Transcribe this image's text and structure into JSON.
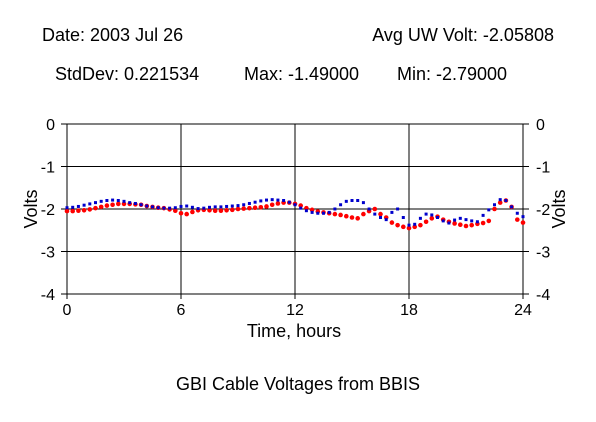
{
  "header": {
    "date": "Date: 2003 Jul 26",
    "avg": "Avg UW Volt: -2.05808",
    "stddev": "StdDev: 0.221534",
    "max": "Max: -1.49000",
    "min": "Min: -2.79000"
  },
  "caption": "GBI Cable Voltages from BBIS",
  "colors": {
    "series_red": "#ff0000",
    "series_blue": "#0000cc",
    "axis": "#000000"
  },
  "chart_data": {
    "type": "scatter",
    "title": "",
    "xlabel": "Time, hours",
    "ylabel": "Volts",
    "xlim": [
      0,
      24
    ],
    "ylim": [
      -4,
      0
    ],
    "xticks": [
      0,
      6,
      12,
      18,
      24
    ],
    "yticks": [
      0,
      -1,
      -2,
      -3,
      -4
    ],
    "grid": true,
    "series": [
      {
        "color": "#ff0000",
        "x": [
          0,
          0.3,
          0.6,
          0.9,
          1.2,
          1.5,
          1.8,
          2.1,
          2.4,
          2.7,
          3,
          3.3,
          3.6,
          3.9,
          4.2,
          4.5,
          4.8,
          5.1,
          5.4,
          5.7,
          6,
          6.3,
          6.6,
          6.9,
          7.2,
          7.5,
          7.8,
          8.1,
          8.4,
          8.7,
          9,
          9.3,
          9.6,
          9.9,
          10.2,
          10.5,
          10.8,
          11.1,
          11.4,
          11.7,
          12,
          12.3,
          12.6,
          12.9,
          13.2,
          13.5,
          13.8,
          14.1,
          14.4,
          14.7,
          15,
          15.3,
          15.6,
          15.9,
          16.2,
          16.5,
          16.8,
          17.1,
          17.4,
          17.7,
          18,
          18.3,
          18.6,
          18.9,
          19.2,
          19.5,
          19.8,
          20.1,
          20.4,
          20.7,
          21,
          21.3,
          21.6,
          21.9,
          22.2,
          22.5,
          22.8,
          23.1,
          23.4,
          23.7,
          24
        ],
        "y": [
          -2.05,
          -2.05,
          -2.04,
          -2.03,
          -2.01,
          -1.98,
          -1.95,
          -1.92,
          -1.9,
          -1.88,
          -1.88,
          -1.88,
          -1.89,
          -1.9,
          -1.93,
          -1.95,
          -1.97,
          -1.98,
          -2.01,
          -2.04,
          -2.1,
          -2.12,
          -2.07,
          -2.03,
          -2.02,
          -2.03,
          -2.04,
          -2.04,
          -2.03,
          -2.02,
          -2.0,
          -1.99,
          -1.98,
          -1.97,
          -1.96,
          -1.94,
          -1.9,
          -1.87,
          -1.85,
          -1.85,
          -1.88,
          -1.92,
          -1.98,
          -2.02,
          -2.06,
          -2.08,
          -2.1,
          -2.12,
          -2.14,
          -2.17,
          -2.2,
          -2.22,
          -2.12,
          -2.05,
          -2.0,
          -2.12,
          -2.2,
          -2.32,
          -2.38,
          -2.42,
          -2.45,
          -2.42,
          -2.38,
          -2.3,
          -2.22,
          -2.18,
          -2.25,
          -2.3,
          -2.34,
          -2.37,
          -2.4,
          -2.38,
          -2.35,
          -2.33,
          -2.28,
          -2.0,
          -1.85,
          -1.8,
          -1.95,
          -2.25,
          -2.32
        ]
      },
      {
        "color": "#0000cc",
        "x": [
          0,
          0.3,
          0.6,
          0.9,
          1.2,
          1.5,
          1.8,
          2.1,
          2.4,
          2.7,
          3,
          3.3,
          3.6,
          3.9,
          4.2,
          4.5,
          4.8,
          5.1,
          5.4,
          5.7,
          6,
          6.3,
          6.6,
          6.9,
          7.2,
          7.5,
          7.8,
          8.1,
          8.4,
          8.7,
          9,
          9.3,
          9.6,
          9.9,
          10.2,
          10.5,
          10.8,
          11.1,
          11.4,
          11.7,
          12,
          12.3,
          12.6,
          12.9,
          13.2,
          13.5,
          13.8,
          14.1,
          14.4,
          14.7,
          15,
          15.3,
          15.6,
          15.9,
          16.2,
          16.5,
          16.8,
          17.1,
          17.4,
          17.7,
          18,
          18.3,
          18.6,
          18.9,
          19.2,
          19.5,
          19.8,
          20.1,
          20.4,
          20.7,
          21,
          21.3,
          21.6,
          21.9,
          22.2,
          22.5,
          22.8,
          23.1,
          23.4,
          23.7,
          24
        ],
        "y": [
          -1.97,
          -1.96,
          -1.94,
          -1.91,
          -1.88,
          -1.85,
          -1.82,
          -1.8,
          -1.79,
          -1.8,
          -1.82,
          -1.85,
          -1.87,
          -1.9,
          -1.93,
          -1.95,
          -1.97,
          -1.98,
          -1.98,
          -1.97,
          -1.94,
          -1.93,
          -1.96,
          -1.99,
          -1.98,
          -1.96,
          -1.95,
          -1.95,
          -1.94,
          -1.93,
          -1.92,
          -1.9,
          -1.87,
          -1.84,
          -1.81,
          -1.79,
          -1.78,
          -1.79,
          -1.8,
          -1.84,
          -1.9,
          -1.98,
          -2.04,
          -2.08,
          -2.1,
          -2.1,
          -2.08,
          -2.0,
          -1.9,
          -1.82,
          -1.8,
          -1.8,
          -1.85,
          -2.0,
          -2.12,
          -2.2,
          -2.25,
          -2.08,
          -2.0,
          -2.2,
          -2.38,
          -2.36,
          -2.22,
          -2.12,
          -2.14,
          -2.2,
          -2.28,
          -2.33,
          -2.26,
          -2.22,
          -2.25,
          -2.28,
          -2.3,
          -2.15,
          -2.02,
          -1.9,
          -1.78,
          -1.8,
          -1.95,
          -2.1,
          -2.18
        ]
      }
    ]
  }
}
